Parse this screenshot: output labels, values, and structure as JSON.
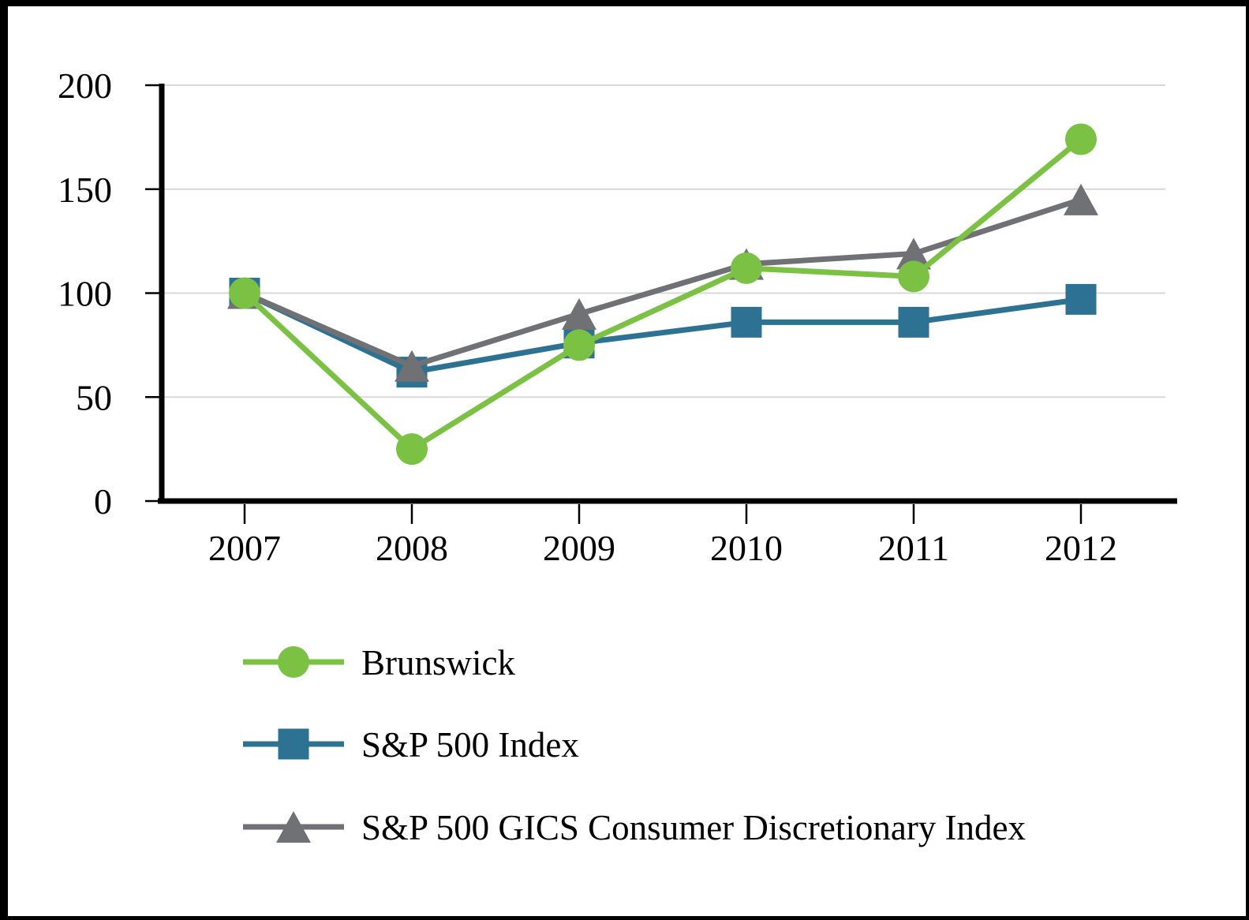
{
  "page": {
    "background": "#ffffff",
    "border_color": "#000000"
  },
  "chart_data": {
    "type": "line",
    "title": "",
    "xlabel": "",
    "ylabel": "",
    "categories": [
      "2007",
      "2008",
      "2009",
      "2010",
      "2011",
      "2012"
    ],
    "series": [
      {
        "name": "Brunswick",
        "marker": "circle",
        "color": "#7bc143",
        "values": [
          100,
          25,
          75,
          112,
          108,
          174
        ]
      },
      {
        "name": "S&P 500 Index",
        "marker": "square",
        "color": "#2d7193",
        "values": [
          100,
          62,
          76,
          86,
          86,
          97
        ]
      },
      {
        "name": "S&P 500 GICS Consumer Discretionary Index",
        "marker": "triangle",
        "color": "#707174",
        "values": [
          100,
          65,
          90,
          114,
          119,
          145
        ]
      }
    ],
    "ylim": [
      0,
      200
    ],
    "yticks": [
      0,
      50,
      100,
      150,
      200
    ],
    "ytick_labels": [
      "0",
      "50",
      "100",
      "150",
      "200"
    ],
    "grid": "horizontal",
    "gridline_color": "#d9d9d9",
    "axis_color": "#000000",
    "text_color": "#000000",
    "legend_position": "bottom-left",
    "draw_order": [
      1,
      2,
      0
    ]
  }
}
